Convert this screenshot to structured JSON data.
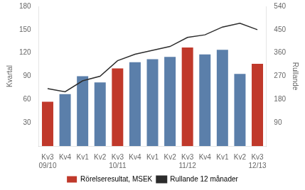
{
  "chart_data": {
    "type": "bar",
    "categories": [
      "Kv3",
      "Kv4",
      "Kv1",
      "Kv2",
      "Kv3",
      "Kv4",
      "Kv1",
      "Kv2",
      "Kv3",
      "Kv4",
      "Kv1",
      "Kv2",
      "Kv3"
    ],
    "annotations": [
      {
        "text": "09/10",
        "at": 0
      },
      {
        "text": "10/11",
        "at": 4
      },
      {
        "text": "11/12",
        "at": 8
      },
      {
        "text": "12/13",
        "at": 12
      }
    ],
    "ylabel": "Kvartal",
    "y2label": "Rullande",
    "series": [
      {
        "name": "Rörelseresultat, MSEK",
        "type": "bar",
        "color": "#c0392b",
        "colors": [
          "#c0392b",
          "#5b7faa",
          "#5b7faa",
          "#5b7faa",
          "#c0392b",
          "#5b7faa",
          "#5b7faa",
          "#5b7faa",
          "#c0392b",
          "#5b7faa",
          "#5b7faa",
          "#5b7faa",
          "#c0392b"
        ],
        "values": [
          57,
          67,
          90,
          82,
          100,
          108,
          112,
          115,
          127,
          118,
          124,
          93,
          106
        ]
      },
      {
        "name": "Rullande 12 månader",
        "type": "line",
        "axis": "y2",
        "color": "#2c2c2c",
        "values": [
          222,
          210,
          252,
          270,
          330,
          355,
          370,
          385,
          420,
          430,
          460,
          475,
          450
        ]
      }
    ],
    "ylim": [
      0,
      180
    ],
    "yticks": [
      30,
      60,
      90,
      120,
      150,
      180
    ],
    "y2lim": [
      0,
      540
    ],
    "y2ticks": [
      90,
      180,
      270,
      360,
      450,
      540
    ],
    "grid": false,
    "legend": "bottom"
  }
}
